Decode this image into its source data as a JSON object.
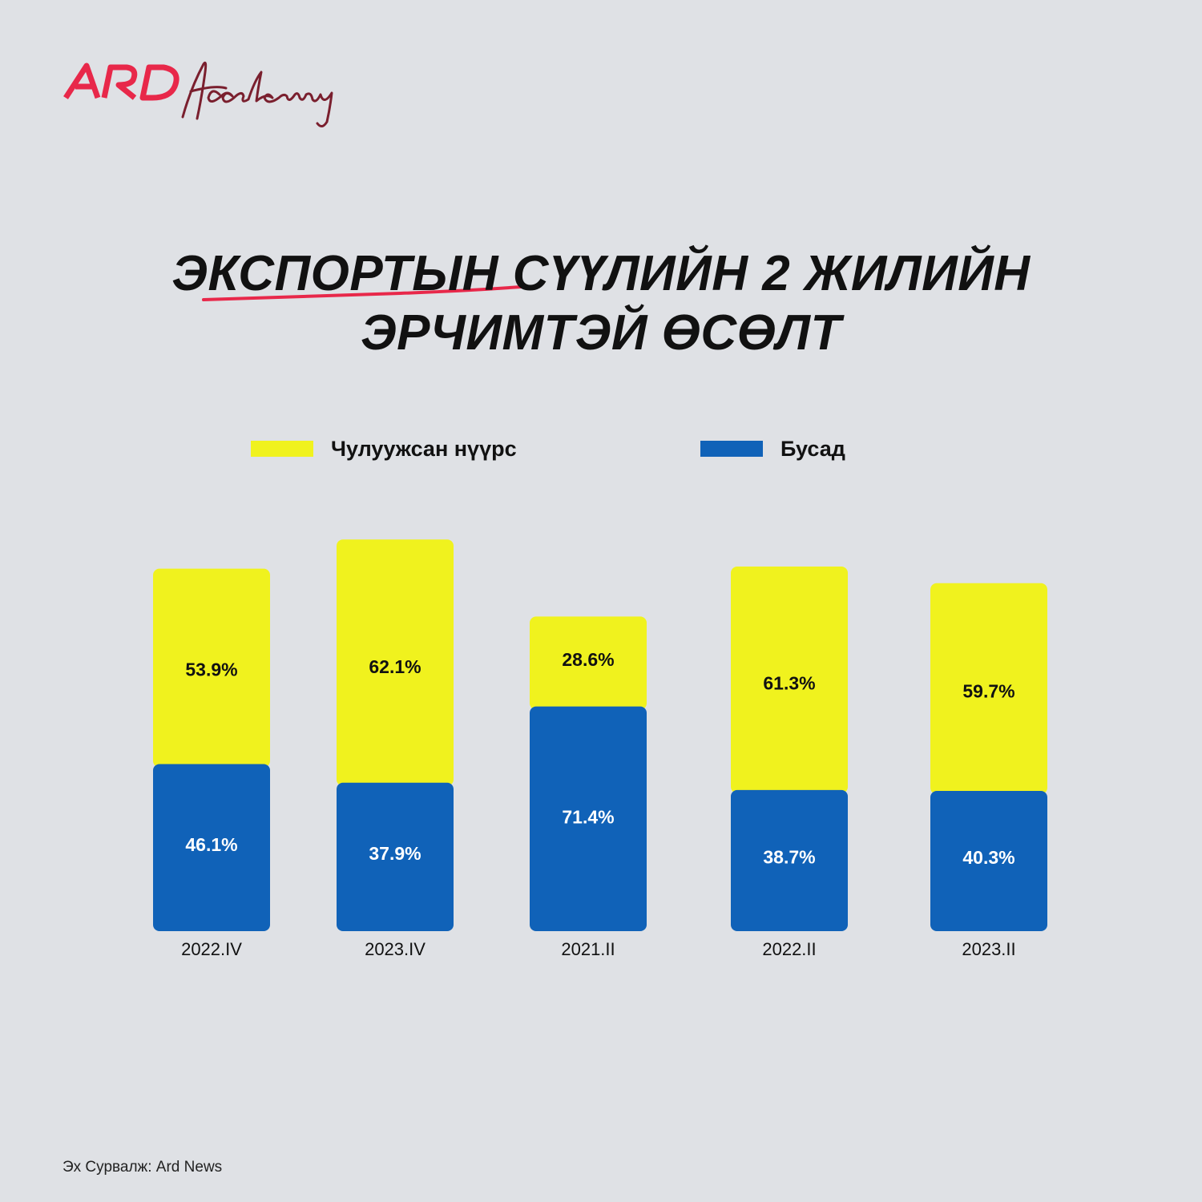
{
  "brand": {
    "logo_text": "ARD Academy",
    "logo_color": "#e8284a"
  },
  "title": {
    "line1": "ЭКСПОРТЫН СҮҮЛИЙН 2 ЖИЛИЙН",
    "line2": "ЭРЧИМТЭЙ ӨСӨЛТ",
    "underline_color": "#e8284a"
  },
  "legend": [
    {
      "label": "Чулуужсан нүүрс",
      "color": "#f0f21e"
    },
    {
      "label": "Бусад",
      "color": "#1062b8"
    }
  ],
  "chart_data": {
    "type": "bar",
    "stacked": true,
    "categories": [
      "2022.IV",
      "2023.IV",
      "2021.II",
      "2022.II",
      "2023.II"
    ],
    "series": [
      {
        "name": "Бусад",
        "values": [
          46.1,
          37.9,
          71.4,
          38.7,
          40.3
        ],
        "labels": [
          "46.1%",
          "37.9%",
          "71.4%",
          "38.7%",
          "40.3%"
        ],
        "color": "#1062b8"
      },
      {
        "name": "Чулуужсан нүүрс",
        "values": [
          53.9,
          62.1,
          28.6,
          61.3,
          59.7
        ],
        "labels": [
          "53.9%",
          "62.1%",
          "28.6%",
          "61.3%",
          "59.7%"
        ],
        "color": "#f0f21e"
      }
    ],
    "ylabel": "",
    "xlabel": "",
    "grid": false,
    "legend_position": "top"
  },
  "source": "Эх Сурвалж: Ard News"
}
